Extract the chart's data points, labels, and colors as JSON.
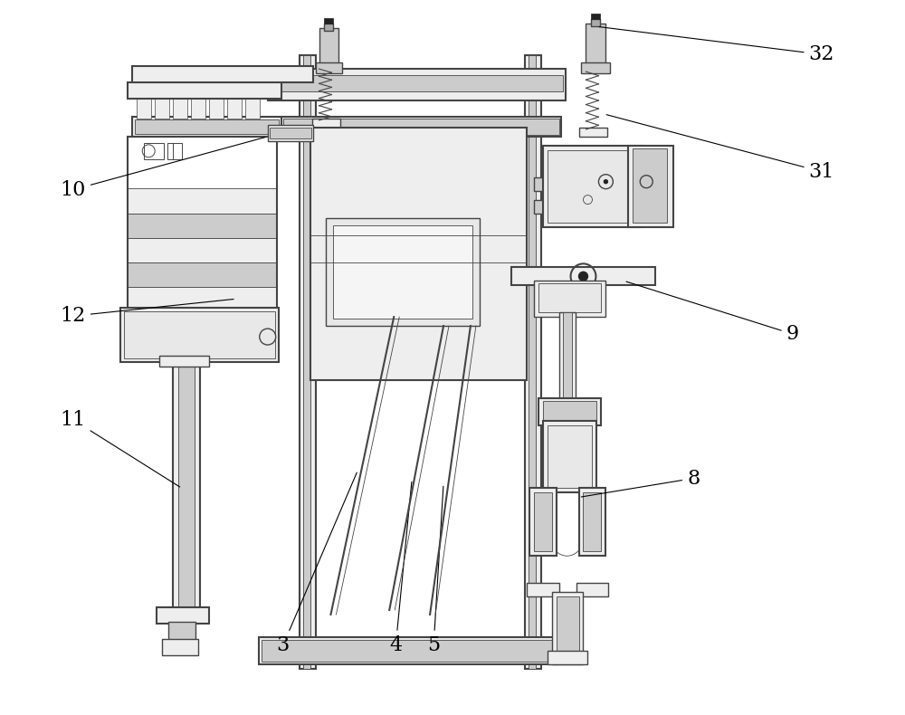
{
  "background_color": "#ffffff",
  "lc": "#444444",
  "dk": "#222222",
  "fl": "#eeeeee",
  "fm": "#cccccc",
  "fd": "#aaaaaa",
  "label_fontsize": 16,
  "figsize": [
    10.0,
    7.9
  ],
  "dpi": 100
}
